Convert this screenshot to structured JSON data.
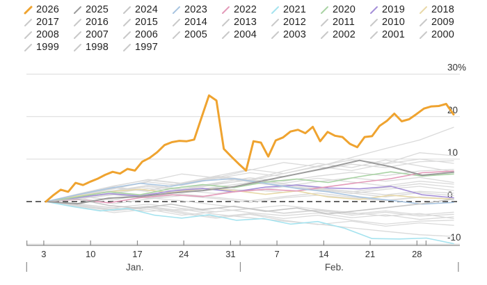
{
  "chart_data": {
    "type": "line",
    "title": "",
    "unit": "%",
    "description": "Year-to-date performance lines for years 1997-2026, Jan through early Mar, current year 2026 highlighted",
    "legend_position": "top",
    "grid": true,
    "y_axis": {
      "side": "right",
      "range": [
        -13,
        32
      ],
      "gridline_values": [
        30,
        20,
        10,
        -10
      ],
      "zero_line_value": 0,
      "tick_labels": [
        {
          "label": "30%",
          "value": 30
        },
        {
          "label": "20",
          "value": 20
        },
        {
          "label": "10",
          "value": 10
        },
        {
          "label": "0",
          "value": 0
        },
        {
          "label": "-10",
          "value": -10
        }
      ]
    },
    "x_axis": {
      "ticks": [
        {
          "label": "",
          "f": 0.001
        },
        {
          "label": "3",
          "f": 0.04
        },
        {
          "label": "10",
          "f": 0.148
        },
        {
          "label": "17",
          "f": 0.256
        },
        {
          "label": "24",
          "f": 0.363
        },
        {
          "label": "31",
          "f": 0.471
        },
        {
          "label": "",
          "f": 0.493
        },
        {
          "label": "7",
          "f": 0.578
        },
        {
          "label": "14",
          "f": 0.686
        },
        {
          "label": "21",
          "f": 0.793
        },
        {
          "label": "28",
          "f": 0.901
        },
        {
          "label": "",
          "f": 0.922
        }
      ],
      "months": [
        {
          "label": "Jan.",
          "f": 0.25
        },
        {
          "label": "Feb.",
          "f": 0.71
        }
      ],
      "separators_f": [
        0.0005,
        0.4935,
        0.9965
      ]
    },
    "colors": {
      "highlight": "#efa32f",
      "gridline": "#d9d9d9",
      "zero_line": "#4d4d4d",
      "axis_line": "#8a8a8a",
      "tick_text": "#333333",
      "month_text": "#444444",
      "gray_series": "#dadada"
    },
    "series": [
      {
        "name": "2026",
        "color": "#efa32f",
        "width": 3,
        "values": [
          0,
          1.5,
          2.8,
          2.3,
          4.4,
          3.9,
          4.7,
          5.4,
          6.3,
          7.0,
          6.6,
          7.7,
          7.3,
          9.4,
          10.3,
          11.6,
          13.3,
          14.0,
          14.3,
          14.2,
          14.6,
          19.8,
          25.0,
          23.8,
          12.4,
          10.6,
          8.9,
          7.3,
          14.2,
          13.9,
          10.6,
          14.4,
          15.1,
          16.5,
          16.9,
          16.1,
          17.6,
          14.2,
          16.4,
          15.5,
          15.2,
          13.6,
          12.8,
          15.2,
          15.4,
          17.8,
          19.0,
          20.7,
          18.9,
          19.4,
          20.6,
          21.9,
          22.4,
          22.5,
          23.0,
          20.5
        ]
      },
      {
        "name": "2025",
        "color": "#9b9b9b",
        "width": 2,
        "values": [
          0,
          -0.5,
          0.8,
          1.2,
          2.0,
          2.6,
          3.5,
          5.0,
          6.5,
          8.0,
          9.7,
          8.2,
          6.2,
          6.9
        ]
      },
      {
        "name": "2024",
        "color": "#c6c6c6",
        "width": 1.6,
        "values": [
          0,
          0.6,
          -0.9,
          -1.6,
          -0.6,
          -1.9,
          -1.1,
          -2.3,
          -1.5,
          -2.9,
          -2.1,
          -1.3,
          -0.5,
          0.6
        ]
      },
      {
        "name": "2023",
        "color": "#a8c4e0",
        "width": 1.6,
        "values": [
          0,
          1.6,
          3.1,
          4.3,
          3.6,
          4.9,
          5.4,
          4.3,
          3.1,
          2.3,
          1.1,
          0.3,
          -0.6,
          -0.2
        ]
      },
      {
        "name": "2022",
        "color": "#e39ab9",
        "width": 1.6,
        "values": [
          0,
          0.5,
          -0.3,
          0.9,
          1.6,
          1.2,
          2.3,
          2.9,
          2.5,
          3.5,
          4.5,
          5.4,
          6.8,
          7.2
        ]
      },
      {
        "name": "2021",
        "color": "#a5e3ef",
        "width": 1.6,
        "values": [
          0,
          -1.2,
          -2.2,
          -1.6,
          -3.2,
          -3.9,
          -3.1,
          -4.4,
          -4.0,
          -5.3,
          -4.7,
          -6.3,
          -8.7,
          -8.8,
          -8.6,
          -9.9
        ]
      },
      {
        "name": "2020",
        "color": "#a9d3a4",
        "width": 1.6,
        "values": [
          0,
          1.1,
          2.3,
          1.6,
          3.1,
          4.0,
          3.3,
          4.6,
          5.3,
          4.5,
          5.9,
          7.0,
          6.0,
          6.5
        ]
      },
      {
        "name": "2019",
        "color": "#a58fd8",
        "width": 1.6,
        "values": [
          0,
          0.9,
          1.9,
          1.3,
          2.5,
          3.1,
          2.3,
          3.4,
          3.9,
          3.2,
          3.0,
          3.6,
          1.6,
          0.9
        ]
      },
      {
        "name": "2018",
        "color": "#e8d9a8",
        "width": 1.6,
        "values": [
          0,
          1.3,
          2.3,
          2.9,
          2.1,
          3.1,
          2.6,
          1.7,
          2.5,
          1.1,
          0.5,
          1.5,
          0.9,
          0.6
        ]
      },
      {
        "name": "2017",
        "color": "#dadada",
        "width": 1.3,
        "values": [
          0,
          1.2,
          2.5,
          3.8,
          3.0,
          4.4,
          5.6,
          4.8,
          6.0,
          6.9,
          6.1,
          7.2,
          7.6
        ]
      },
      {
        "name": "2016",
        "color": "#dadada",
        "width": 1.3,
        "values": [
          0,
          1.4,
          3.0,
          4.8,
          6.5,
          5.6,
          7.4,
          9.2,
          8.2,
          10.4,
          12.5,
          14.5,
          17.5
        ]
      },
      {
        "name": "2015",
        "color": "#dadada",
        "width": 1.3,
        "values": [
          0,
          1.9,
          3.7,
          5.1,
          4.2,
          5.6,
          4.7,
          3.8,
          2.9,
          2.0,
          1.1,
          2.1,
          1.4
        ]
      },
      {
        "name": "2014",
        "color": "#dadada",
        "width": 1.3,
        "values": [
          0,
          1.7,
          3.4,
          2.6,
          4.3,
          5.8,
          5.0,
          6.6,
          8.2,
          7.3,
          8.9,
          10.0,
          9.0
        ]
      },
      {
        "name": "2013",
        "color": "#dadada",
        "width": 1.3,
        "values": [
          0,
          -1.0,
          -2.0,
          -1.2,
          -2.5,
          -3.6,
          -2.8,
          -4.0,
          -3.2,
          -4.4,
          -5.3,
          -4.6,
          -4.4
        ]
      },
      {
        "name": "2012",
        "color": "#dadada",
        "width": 1.3,
        "values": [
          0,
          1.6,
          3.1,
          4.6,
          3.8,
          5.4,
          6.8,
          5.9,
          7.4,
          8.8,
          8.0,
          9.4,
          9.6
        ]
      },
      {
        "name": "2011",
        "color": "#dadada",
        "width": 1.3,
        "values": [
          0,
          -1.3,
          -2.6,
          -1.8,
          -3.2,
          -2.4,
          -1.6,
          -2.7,
          -1.9,
          -2.9,
          -2.2,
          -3.1,
          -2.5
        ]
      },
      {
        "name": "2010",
        "color": "#dadada",
        "width": 1.3,
        "values": [
          0,
          -1.1,
          -2.2,
          -1.4,
          -2.8,
          -3.9,
          -3.0,
          -4.4,
          -5.4,
          -4.6,
          -5.8,
          -5.0,
          -5.6
        ]
      },
      {
        "name": "2009",
        "color": "#dadada",
        "width": 1.3,
        "values": [
          0,
          1.5,
          3.2,
          2.4,
          4.4,
          6.0,
          5.1,
          7.2,
          9.0,
          8.0,
          9.8,
          8.4,
          7.0
        ]
      },
      {
        "name": "2008",
        "color": "#dadada",
        "width": 1.3,
        "values": [
          0,
          1.8,
          3.6,
          5.2,
          4.3,
          6.0,
          7.6,
          6.6,
          8.4,
          9.8,
          9.0,
          11.5,
          10.8
        ]
      },
      {
        "name": "2007",
        "color": "#dadada",
        "width": 1.3,
        "values": [
          0,
          0.9,
          2.0,
          3.1,
          2.3,
          3.4,
          4.5,
          3.6,
          4.7,
          5.6,
          4.8,
          5.7,
          4.5
        ]
      },
      {
        "name": "2006",
        "color": "#dadada",
        "width": 1.3,
        "values": [
          0,
          1.3,
          2.4,
          3.5,
          2.7,
          4.0,
          5.2,
          4.3,
          5.5,
          4.6,
          3.7,
          4.8,
          4.1
        ]
      },
      {
        "name": "2005",
        "color": "#dadada",
        "width": 1.3,
        "values": [
          0,
          -0.7,
          -1.4,
          -0.6,
          -1.6,
          -2.4,
          -1.7,
          -2.8,
          -2.1,
          -3.2,
          -2.5,
          -3.4,
          -3.0
        ]
      },
      {
        "name": "2004",
        "color": "#dadada",
        "width": 1.3,
        "values": [
          0,
          0.7,
          1.6,
          0.8,
          1.8,
          1.0,
          0.2,
          1.2,
          2.0,
          1.1,
          0.3,
          1.1,
          0.6
        ]
      },
      {
        "name": "2003",
        "color": "#dadada",
        "width": 1.3,
        "values": [
          0,
          1.4,
          2.6,
          3.8,
          2.9,
          4.2,
          5.0,
          4.1,
          3.2,
          2.3,
          3.3,
          4.2,
          3.4
        ]
      },
      {
        "name": "2002",
        "color": "#dadada",
        "width": 1.3,
        "values": [
          0,
          1.1,
          2.0,
          1.4,
          2.4,
          3.2,
          2.5,
          3.5,
          2.8,
          1.9,
          2.9,
          3.6,
          2.6
        ]
      },
      {
        "name": "2001",
        "color": "#dadada",
        "width": 1.3,
        "values": [
          0,
          -0.9,
          -1.8,
          -1.1,
          -2.2,
          -1.5,
          -2.6,
          -3.3,
          -2.7,
          -3.8,
          -3.1,
          -4.2,
          -3.6
        ]
      },
      {
        "name": "2000",
        "color": "#dadada",
        "width": 1.3,
        "values": [
          0,
          1.0,
          1.8,
          0.9,
          0.2,
          -0.8,
          -1.6,
          -0.9,
          -1.8,
          -2.6,
          -3.4,
          -2.8,
          -4.0
        ]
      },
      {
        "name": "1999",
        "color": "#dadada",
        "width": 1.3,
        "values": [
          0,
          0.8,
          -0.5,
          0.6,
          1.4,
          0.7,
          -0.2,
          0.9,
          1.5,
          0.8,
          0.2,
          1.0,
          0.5
        ]
      },
      {
        "name": "1998",
        "color": "#dadada",
        "width": 1.3,
        "values": [
          0,
          1.2,
          0.4,
          1.8,
          2.6,
          1.9,
          2.8,
          2.2,
          3.0,
          2.4,
          1.6,
          2.4,
          2.0
        ]
      },
      {
        "name": "1997",
        "color": "#dadada",
        "width": 1.3,
        "values": [
          0,
          -0.6,
          -1.5,
          -2.3,
          -1.8,
          -3.0,
          -3.8,
          -4.6,
          -5.3,
          -6.2,
          -7.0,
          -7.8,
          -8.2
        ]
      }
    ],
    "legend_marker_colors": {
      "gray_years": "#c9c9c9"
    }
  }
}
